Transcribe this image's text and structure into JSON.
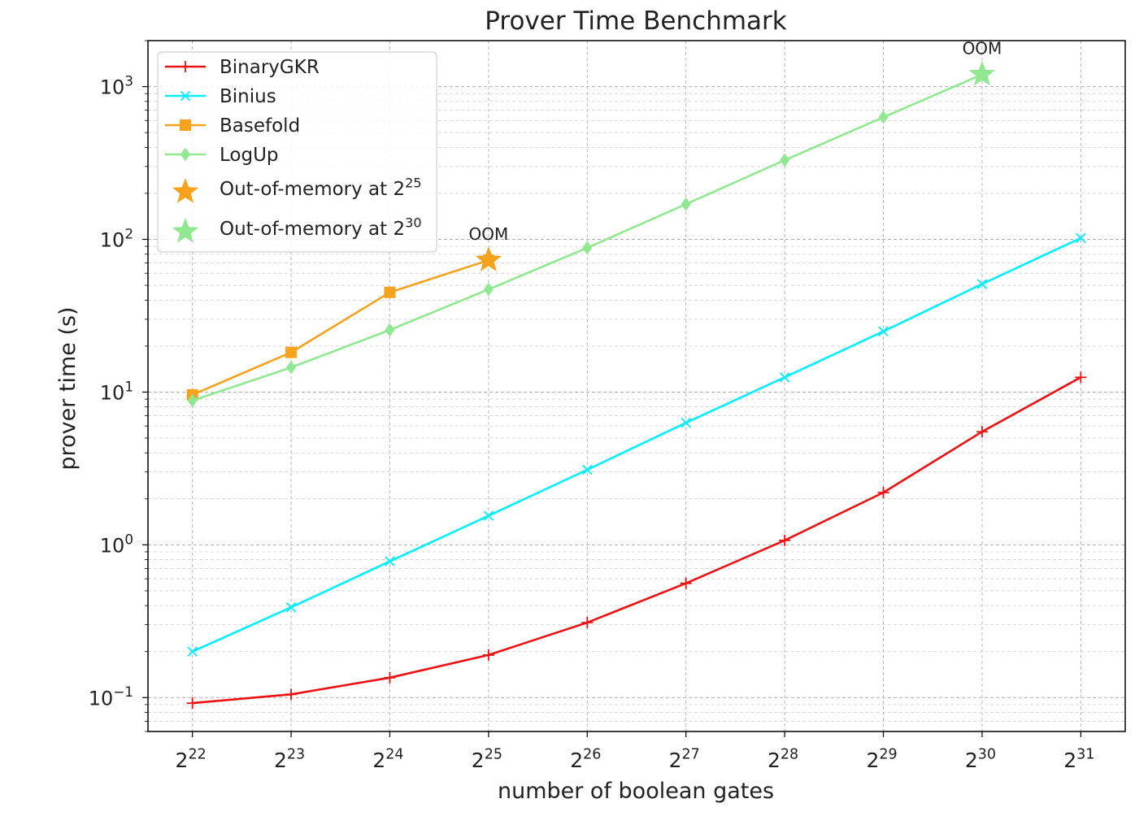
{
  "chart_data": {
    "type": "line",
    "title": "Prover Time Benchmark",
    "xlabel": "number of boolean gates",
    "ylabel": "prover time (s)",
    "x_scale": "log2",
    "y_scale": "log10",
    "xlim": [
      21.55,
      31.45
    ],
    "ylim": [
      0.06,
      2000
    ],
    "grid": true,
    "legend_position": "top-left",
    "x_ticks": [
      {
        "base": "2",
        "exp": "22",
        "value": 22
      },
      {
        "base": "2",
        "exp": "23",
        "value": 23
      },
      {
        "base": "2",
        "exp": "24",
        "value": 24
      },
      {
        "base": "2",
        "exp": "25",
        "value": 25
      },
      {
        "base": "2",
        "exp": "26",
        "value": 26
      },
      {
        "base": "2",
        "exp": "27",
        "value": 27
      },
      {
        "base": "2",
        "exp": "28",
        "value": 28
      },
      {
        "base": "2",
        "exp": "29",
        "value": 29
      },
      {
        "base": "2",
        "exp": "30",
        "value": 30
      },
      {
        "base": "2",
        "exp": "31",
        "value": 31
      }
    ],
    "y_ticks": [
      {
        "base": "10",
        "exp": "−1",
        "value": 0.1
      },
      {
        "base": "10",
        "exp": "0",
        "value": 1
      },
      {
        "base": "10",
        "exp": "1",
        "value": 10
      },
      {
        "base": "10",
        "exp": "2",
        "value": 100
      },
      {
        "base": "10",
        "exp": "3",
        "value": 1000
      }
    ],
    "series": [
      {
        "name": "BinaryGKR",
        "color": "#ee1111",
        "marker": "plus",
        "points": [
          [
            22,
            0.092
          ],
          [
            23,
            0.105
          ],
          [
            24,
            0.135
          ],
          [
            25,
            0.19
          ],
          [
            26,
            0.31
          ],
          [
            27,
            0.56
          ],
          [
            28,
            1.07
          ],
          [
            29,
            2.2
          ],
          [
            30,
            5.5
          ],
          [
            31,
            12.5
          ]
        ]
      },
      {
        "name": "Binius",
        "color": "#00f0ff",
        "marker": "x",
        "points": [
          [
            22,
            0.2
          ],
          [
            23,
            0.39
          ],
          [
            24,
            0.78
          ],
          [
            25,
            1.55
          ],
          [
            26,
            3.1
          ],
          [
            27,
            6.3
          ],
          [
            28,
            12.5
          ],
          [
            29,
            25
          ],
          [
            30,
            51
          ],
          [
            31,
            102
          ]
        ]
      },
      {
        "name": "Basefold",
        "color": "#f6a21d",
        "marker": "square",
        "points": [
          [
            22,
            9.6
          ],
          [
            23,
            18.2
          ],
          [
            24,
            45
          ],
          [
            25,
            73
          ]
        ]
      },
      {
        "name": "LogUp",
        "color": "#90e890",
        "marker": "diamond",
        "points": [
          [
            22,
            8.8
          ],
          [
            23,
            14.5
          ],
          [
            24,
            25.5
          ],
          [
            25,
            47
          ],
          [
            26,
            88
          ],
          [
            27,
            170
          ],
          [
            28,
            330
          ],
          [
            29,
            630
          ],
          [
            30,
            1200
          ]
        ]
      }
    ],
    "oom_markers": [
      {
        "name_prefix": "Out-of-memory at ",
        "base": "2",
        "exp": "25",
        "color": "#f6a21d",
        "x": 25,
        "y": 73,
        "annotation": "OOM"
      },
      {
        "name_prefix": "Out-of-memory at ",
        "base": "2",
        "exp": "30",
        "color": "#90e890",
        "x": 30,
        "y": 1200,
        "annotation": "OOM"
      }
    ]
  }
}
